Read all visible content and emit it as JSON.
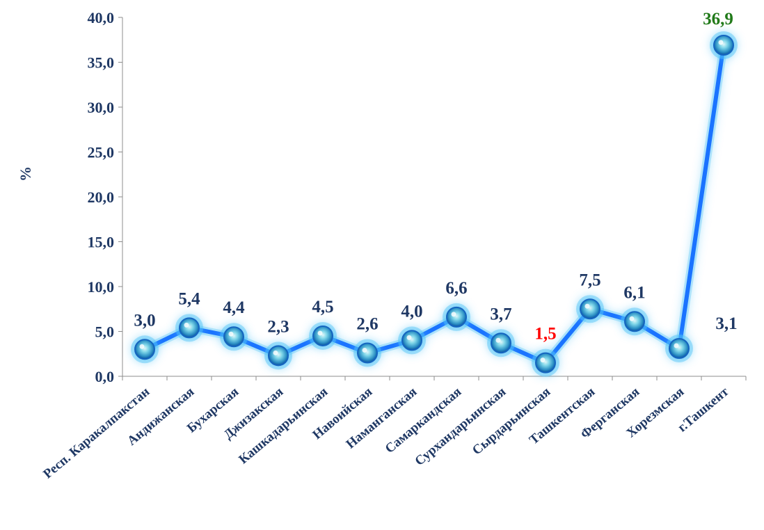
{
  "chart_data": {
    "type": "line",
    "ylabel": "%",
    "xlabel": "",
    "ylim": [
      0,
      40
    ],
    "ytick_labels": [
      "0,0",
      "5,0",
      "10,0",
      "15,0",
      "20,0",
      "25,0",
      "30,0",
      "35,0",
      "40,0"
    ],
    "categories": [
      "Респ. Каракалпакстан",
      "Андижанская",
      "Бухарская",
      "Джизакская",
      "Кашкадарьинская",
      "Навоийская",
      "Наманганская",
      "Самаркандская",
      "Сурхандарьинская",
      "Сырдарьинская",
      "Ташкентская",
      "Ферганская",
      "Хорезмская",
      "г.Ташкент"
    ],
    "values": [
      3.0,
      5.4,
      4.4,
      2.3,
      4.5,
      2.6,
      4.0,
      6.6,
      3.7,
      1.5,
      7.5,
      6.1,
      3.1,
      36.9
    ],
    "data_labels": [
      "3,0",
      "5,4",
      "4,4",
      "2,3",
      "4,5",
      "2,6",
      "4,0",
      "6,6",
      "3,7",
      "1,5",
      "7,5",
      "6,1",
      "3,1",
      "36,9"
    ],
    "grid": false,
    "colors": {
      "line": "#1a73ff",
      "glow": "#4fc3f7",
      "text": "#1f3864",
      "min_label": "#ff0000",
      "max_label": "#217a1a"
    }
  }
}
